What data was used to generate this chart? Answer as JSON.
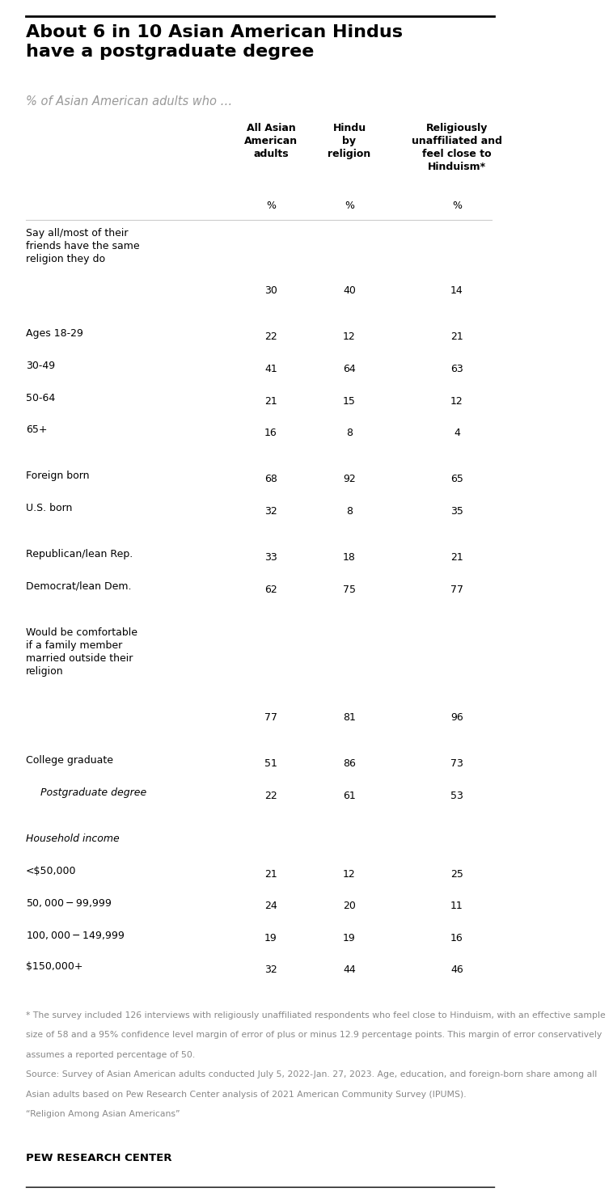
{
  "title": "About 6 in 10 Asian American Hindus\nhave a postgraduate degree",
  "subtitle": "% of Asian American adults who …",
  "col_headers": [
    "All Asian\nAmerican\nadults",
    "Hindu\nby\nreligion",
    "Religiously\nunaffiliated and\nfeel close to\nHinduism*"
  ],
  "rows": [
    {
      "label": "Say all/most of their\nfriends have the same\nreligion they do",
      "vals": [
        "30",
        "40",
        "14"
      ],
      "italic": false,
      "indent": false,
      "spacer_before": false
    },
    {
      "label": "Ages 18-29",
      "vals": [
        "22",
        "12",
        "21"
      ],
      "italic": false,
      "indent": false,
      "spacer_before": true
    },
    {
      "label": "30-49",
      "vals": [
        "41",
        "64",
        "63"
      ],
      "italic": false,
      "indent": false,
      "spacer_before": false
    },
    {
      "label": "50-64",
      "vals": [
        "21",
        "15",
        "12"
      ],
      "italic": false,
      "indent": false,
      "spacer_before": false
    },
    {
      "label": "65+",
      "vals": [
        "16",
        "8",
        "4"
      ],
      "italic": false,
      "indent": false,
      "spacer_before": false
    },
    {
      "label": "Foreign born",
      "vals": [
        "68",
        "92",
        "65"
      ],
      "italic": false,
      "indent": false,
      "spacer_before": true
    },
    {
      "label": "U.S. born",
      "vals": [
        "32",
        "8",
        "35"
      ],
      "italic": false,
      "indent": false,
      "spacer_before": false
    },
    {
      "label": "Republican/lean Rep.",
      "vals": [
        "33",
        "18",
        "21"
      ],
      "italic": false,
      "indent": false,
      "spacer_before": true
    },
    {
      "label": "Democrat/lean Dem.",
      "vals": [
        "62",
        "75",
        "77"
      ],
      "italic": false,
      "indent": false,
      "spacer_before": false
    },
    {
      "label": "Would be comfortable\nif a family member\nmarried outside their\nreligion",
      "vals": [
        "77",
        "81",
        "96"
      ],
      "italic": false,
      "indent": false,
      "spacer_before": true
    },
    {
      "label": "College graduate",
      "vals": [
        "51",
        "86",
        "73"
      ],
      "italic": false,
      "indent": false,
      "spacer_before": true
    },
    {
      "label": "Postgraduate degree",
      "vals": [
        "22",
        "61",
        "53"
      ],
      "italic": true,
      "indent": true,
      "spacer_before": false
    },
    {
      "label": "Household income",
      "vals": [
        "",
        "",
        ""
      ],
      "italic": true,
      "indent": false,
      "spacer_before": true
    },
    {
      "label": "<$50,000",
      "vals": [
        "21",
        "12",
        "25"
      ],
      "italic": false,
      "indent": false,
      "spacer_before": false
    },
    {
      "label": "$50,000-$99,999",
      "vals": [
        "24",
        "20",
        "11"
      ],
      "italic": false,
      "indent": false,
      "spacer_before": false
    },
    {
      "label": "$100,000-$149,999",
      "vals": [
        "19",
        "19",
        "16"
      ],
      "italic": false,
      "indent": false,
      "spacer_before": false
    },
    {
      "label": "$150,000+",
      "vals": [
        "32",
        "44",
        "46"
      ],
      "italic": false,
      "indent": false,
      "spacer_before": false
    }
  ],
  "footnote_lines": [
    "* The survey included 126 interviews with religiously unaffiliated respondents who feel close to Hinduism, with an effective sample",
    "size of 58 and a 95% confidence level margin of error of plus or minus 12.9 percentage points. This margin of error conservatively",
    "assumes a reported percentage of 50.",
    "Source: Survey of Asian American adults conducted July 5, 2022-Jan. 27, 2023. Age, education, and foreign-born share among all",
    "Asian adults based on Pew Research Center analysis of 2021 American Community Survey (IPUMS).",
    "“Religion Among Asian Americans”"
  ],
  "source_label": "PEW RESEARCH CENTER",
  "bg_color": "#ffffff",
  "title_color": "#000000",
  "subtitle_color": "#999999",
  "header_color": "#000000",
  "row_color": "#000000",
  "footnote_color": "#888888",
  "divider_color": "#cccccc",
  "top_divider_color": "#000000"
}
